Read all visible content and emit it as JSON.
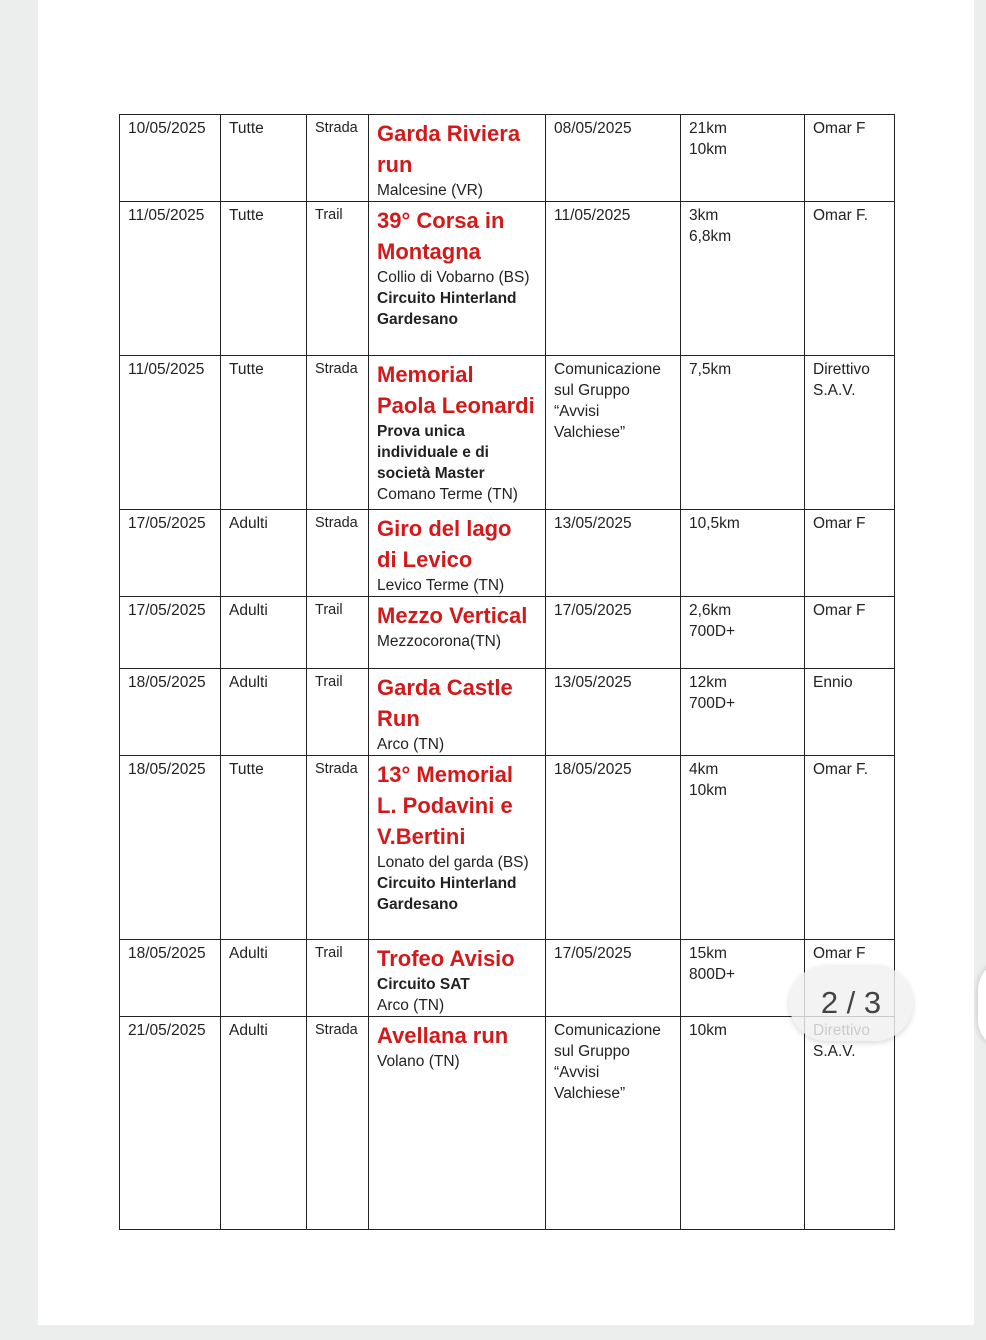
{
  "rows": [
    {
      "date": "10/05/2025",
      "cat": "Tutte",
      "type": "Strada",
      "title": "Garda Riviera run",
      "lines": [
        {
          "text": "Malcesine (VR)",
          "bold": false
        }
      ],
      "deadline": [
        "08/05/2025"
      ],
      "dist": [
        "21km",
        "10km"
      ],
      "ref": [
        "Omar F"
      ]
    },
    {
      "date": "11/05/2025",
      "cat": "Tutte",
      "type": "Trail",
      "title": "39° Corsa in Montagna",
      "lines": [
        {
          "text": "Collio di Vobarno (BS)",
          "bold": false
        },
        {
          "text": "Circuito Hinterland Gardesano",
          "bold": true
        }
      ],
      "deadline": [
        "11/05/2025"
      ],
      "dist": [
        "3km",
        "6,8km"
      ],
      "ref": [
        "Omar F."
      ]
    },
    {
      "date": "11/05/2025",
      "cat": "Tutte",
      "type": "Strada",
      "title": "Memorial Paola Leonardi",
      "lines": [
        {
          "text": "Prova unica individuale e di società Master",
          "bold": true
        },
        {
          "text": "Comano Terme (TN)",
          "bold": false
        }
      ],
      "deadline": [
        "Comunicazione sul Gruppo “Avvisi Valchiese”"
      ],
      "dist": [
        "7,5km"
      ],
      "ref": [
        "Direttivo S.A.V."
      ]
    },
    {
      "date": "17/05/2025",
      "cat": "Adulti",
      "type": "Strada",
      "title": "Giro del lago di Levico",
      "lines": [
        {
          "text": "Levico Terme (TN)",
          "bold": false
        }
      ],
      "deadline": [
        "13/05/2025"
      ],
      "dist": [
        "10,5km"
      ],
      "ref": [
        "Omar F"
      ]
    },
    {
      "date": "17/05/2025",
      "cat": "Adulti",
      "type": "Trail",
      "title": "Mezzo Vertical",
      "lines": [
        {
          "text": "Mezzocorona(TN)",
          "bold": false
        }
      ],
      "deadline": [
        "17/05/2025"
      ],
      "dist": [
        "2,6km",
        "700D+"
      ],
      "ref": [
        "Omar F"
      ]
    },
    {
      "date": "18/05/2025",
      "cat": "Adulti",
      "type": "Trail",
      "title": "Garda Castle Run",
      "lines": [
        {
          "text": "Arco (TN)",
          "bold": false
        }
      ],
      "deadline": [
        "13/05/2025"
      ],
      "dist": [
        "12km",
        "700D+"
      ],
      "ref": [
        "Ennio"
      ]
    },
    {
      "date": "18/05/2025",
      "cat": "Tutte",
      "type": "Strada",
      "title": "13° Memorial L. Podavini e V.Bertini",
      "lines": [
        {
          "text": "Lonato del garda (BS)",
          "bold": false
        },
        {
          "text": "Circuito Hinterland Gardesano",
          "bold": true
        }
      ],
      "deadline": [
        "18/05/2025"
      ],
      "dist": [
        "4km",
        "10km"
      ],
      "ref": [
        "Omar F."
      ]
    },
    {
      "date": "18/05/2025",
      "cat": "Adulti",
      "type": "Trail",
      "title": "Trofeo Avisio",
      "lines": [
        {
          "text": "Circuito SAT",
          "bold": true
        },
        {
          "text": "Arco (TN)",
          "bold": false
        }
      ],
      "deadline": [
        "17/05/2025"
      ],
      "dist": [
        "15km",
        "800D+"
      ],
      "ref": [
        "Omar F"
      ]
    },
    {
      "date": "21/05/2025",
      "cat": "Adulti",
      "type": "Strada",
      "title": "Avellana run",
      "lines": [
        {
          "text": "Volano (TN)",
          "bold": false
        }
      ],
      "deadline": [
        "Comunicazione sul Gruppo “Avvisi Valchiese”"
      ],
      "dist": [
        "10km"
      ],
      "ref": [
        "Direttivo S.A.V."
      ]
    }
  ],
  "pager": {
    "label": "2 / 3"
  }
}
